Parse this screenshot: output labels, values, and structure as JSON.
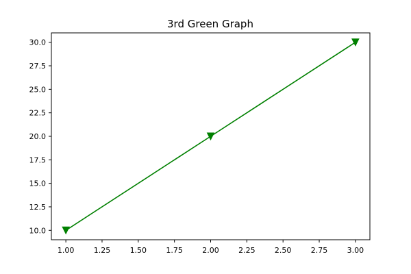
{
  "chart_data": {
    "type": "line",
    "title": "3rd Green Graph",
    "xlabel": "",
    "ylabel": "",
    "x": [
      1,
      2,
      3
    ],
    "series": [
      {
        "values": [
          10,
          20,
          30
        ],
        "color": "#008000",
        "marker": "triangle-down"
      }
    ],
    "xlim": [
      0.9,
      3.1
    ],
    "ylim": [
      9.0,
      31.0
    ],
    "xticks": [
      1.0,
      1.25,
      1.5,
      1.75,
      2.0,
      2.25,
      2.5,
      2.75,
      3.0
    ],
    "xtick_labels": [
      "1.00",
      "1.25",
      "1.50",
      "1.75",
      "2.00",
      "2.25",
      "2.50",
      "2.75",
      "3.00"
    ],
    "yticks": [
      10.0,
      12.5,
      15.0,
      17.5,
      20.0,
      22.5,
      25.0,
      27.5,
      30.0
    ],
    "ytick_labels": [
      "10.0",
      "12.5",
      "15.0",
      "17.5",
      "20.0",
      "22.5",
      "25.0",
      "27.5",
      "30.0"
    ],
    "grid": false,
    "legend": "none"
  }
}
